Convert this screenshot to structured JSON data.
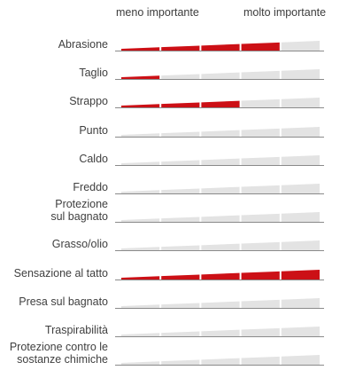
{
  "legend": {
    "low": "meno importante",
    "high": "molto importante"
  },
  "colors": {
    "filled": "#cc1016",
    "empty": "#e3e3e3",
    "baseline": "#8a8a8a"
  },
  "segments_total": 5,
  "rows": [
    {
      "label": "Abrasione",
      "level": 4
    },
    {
      "label": "Taglio",
      "level": 1
    },
    {
      "label": "Strappo",
      "level": 3
    },
    {
      "label": "Punto",
      "level": 0
    },
    {
      "label": "Caldo",
      "level": 0
    },
    {
      "label": "Freddo",
      "level": 0
    },
    {
      "label": "Protezione\nsul bagnato",
      "level": 0
    },
    {
      "label": "Grasso/olio",
      "level": 0
    },
    {
      "label": "Sensazione al tatto",
      "level": 5
    },
    {
      "label": "Presa sul bagnato",
      "level": 0
    },
    {
      "label": "Traspirabilità",
      "level": 0
    },
    {
      "label": "Protezione contro le\nsostanze chimiche",
      "level": 0
    }
  ]
}
